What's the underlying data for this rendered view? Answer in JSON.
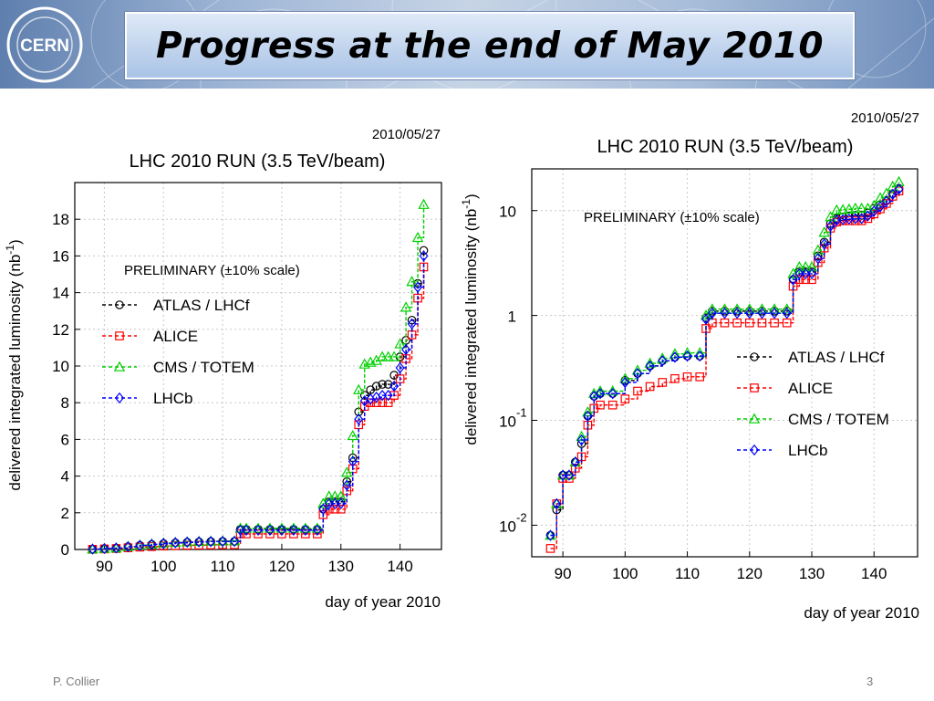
{
  "slide": {
    "title": "Progress at the end of May 2010",
    "footer_author": "P. Collier",
    "page_number": "3",
    "logo_text": "CERN"
  },
  "chart_data": [
    {
      "type": "line",
      "date": "2010/05/27",
      "title": "LHC 2010 RUN (3.5 TeV/beam)",
      "xlabel": "day of year 2010",
      "ylabel": "delivered integrated luminosity (nb",
      "ylabel_sup": "-1",
      "ylabel_end": ")",
      "annotation": "PRELIMINARY (±10% scale)",
      "xlim": [
        85,
        147
      ],
      "ylim": [
        0,
        20
      ],
      "y_scale": "linear",
      "x_ticks": [
        90,
        100,
        110,
        120,
        130,
        140
      ],
      "y_ticks": [
        0,
        2,
        4,
        6,
        8,
        10,
        12,
        14,
        16,
        18
      ],
      "grid": true,
      "legend_position": "middle-left",
      "series": [
        {
          "name": "ATLAS / LHCf",
          "color": "#000000",
          "marker": "circle",
          "x": [
            88,
            90,
            92,
            94,
            96,
            98,
            100,
            102,
            104,
            106,
            108,
            110,
            112,
            113,
            114,
            116,
            118,
            120,
            122,
            124,
            126,
            127,
            128,
            129,
            130,
            131,
            132,
            133,
            134,
            135,
            136,
            137,
            138,
            139,
            140,
            141,
            142,
            143,
            144
          ],
          "y": [
            0.02,
            0.05,
            0.08,
            0.15,
            0.22,
            0.27,
            0.32,
            0.36,
            0.39,
            0.41,
            0.43,
            0.44,
            0.44,
            1.1,
            1.1,
            1.1,
            1.1,
            1.1,
            1.1,
            1.1,
            1.1,
            2.2,
            2.6,
            2.6,
            2.6,
            3.7,
            5.0,
            7.5,
            8.4,
            8.7,
            8.9,
            9.0,
            9.0,
            9.5,
            10.5,
            11.4,
            12.5,
            14.5,
            16.3
          ]
        },
        {
          "name": "ALICE",
          "color": "#ff0000",
          "marker": "square",
          "x": [
            88,
            90,
            92,
            94,
            96,
            98,
            100,
            102,
            104,
            106,
            108,
            110,
            112,
            113,
            114,
            116,
            118,
            120,
            122,
            124,
            126,
            127,
            128,
            129,
            130,
            131,
            132,
            133,
            134,
            135,
            136,
            137,
            138,
            139,
            140,
            141,
            142,
            143,
            144
          ],
          "y": [
            0.01,
            0.03,
            0.05,
            0.09,
            0.13,
            0.16,
            0.19,
            0.21,
            0.23,
            0.24,
            0.25,
            0.26,
            0.26,
            0.85,
            0.85,
            0.85,
            0.85,
            0.85,
            0.85,
            0.85,
            0.85,
            1.9,
            2.2,
            2.2,
            2.2,
            3.2,
            4.4,
            6.8,
            7.8,
            8.0,
            8.0,
            8.0,
            8.0,
            8.4,
            9.3,
            10.4,
            11.7,
            13.7,
            15.4
          ]
        },
        {
          "name": "CMS / TOTEM",
          "color": "#00d000",
          "marker": "triangle",
          "x": [
            88,
            90,
            92,
            94,
            96,
            98,
            100,
            102,
            104,
            106,
            108,
            110,
            112,
            113,
            114,
            116,
            118,
            120,
            122,
            124,
            126,
            127,
            128,
            129,
            130,
            131,
            132,
            133,
            134,
            135,
            136,
            137,
            138,
            139,
            140,
            141,
            142,
            143,
            144
          ],
          "y": [
            0.02,
            0.05,
            0.08,
            0.16,
            0.24,
            0.29,
            0.35,
            0.38,
            0.41,
            0.43,
            0.45,
            0.46,
            0.46,
            1.15,
            1.15,
            1.15,
            1.15,
            1.15,
            1.15,
            1.15,
            1.15,
            2.5,
            2.9,
            2.9,
            2.9,
            4.2,
            6.2,
            8.7,
            10.1,
            10.2,
            10.3,
            10.5,
            10.5,
            10.5,
            11.2,
            13.2,
            14.6,
            17.0,
            18.8
          ]
        },
        {
          "name": "LHCb",
          "color": "#0000ff",
          "marker": "diamond",
          "x": [
            88,
            90,
            92,
            94,
            96,
            98,
            100,
            102,
            104,
            106,
            108,
            110,
            112,
            113,
            114,
            116,
            118,
            120,
            122,
            124,
            126,
            127,
            128,
            129,
            130,
            131,
            132,
            133,
            134,
            135,
            136,
            137,
            138,
            139,
            140,
            141,
            142,
            143,
            144
          ],
          "y": [
            0.02,
            0.05,
            0.08,
            0.15,
            0.22,
            0.28,
            0.33,
            0.37,
            0.4,
            0.42,
            0.43,
            0.44,
            0.44,
            1.05,
            1.05,
            1.05,
            1.05,
            1.05,
            1.05,
            1.05,
            1.05,
            2.2,
            2.5,
            2.5,
            2.5,
            3.5,
            4.8,
            7.1,
            8.1,
            8.2,
            8.3,
            8.4,
            8.4,
            8.9,
            9.9,
            10.9,
            12.3,
            14.3,
            16.0
          ]
        }
      ]
    },
    {
      "type": "line",
      "date": "2010/05/27",
      "title": "LHC 2010 RUN (3.5 TeV/beam)",
      "xlabel": "day of year 2010",
      "ylabel": "delivered integrated luminosity (nb",
      "ylabel_sup": "-1",
      "ylabel_end": ")",
      "annotation": "PRELIMINARY (±10% scale)",
      "xlim": [
        85,
        147
      ],
      "ylim": [
        0.005,
        25
      ],
      "y_scale": "log",
      "x_ticks": [
        90,
        100,
        110,
        120,
        130,
        140
      ],
      "y_ticks": [
        {
          "value": 10,
          "label": "10",
          "sup": ""
        },
        {
          "value": 1,
          "label": "1",
          "sup": ""
        },
        {
          "value": 0.1,
          "label": "10",
          "sup": "-1"
        },
        {
          "value": 0.01,
          "label": "10",
          "sup": "-2"
        }
      ],
      "grid": true,
      "legend_position": "middle-right",
      "series": [
        {
          "name": "ATLAS / LHCf",
          "color": "#000000",
          "marker": "circle",
          "x": [
            88,
            89,
            90,
            91,
            92,
            93,
            94,
            95,
            96,
            98,
            100,
            102,
            104,
            106,
            108,
            110,
            112,
            113,
            114,
            116,
            118,
            120,
            122,
            124,
            126,
            127,
            128,
            129,
            130,
            131,
            132,
            133,
            134,
            135,
            136,
            137,
            138,
            139,
            140,
            141,
            142,
            143,
            144
          ],
          "y": [
            0.008,
            0.014,
            0.03,
            0.03,
            0.04,
            0.06,
            0.11,
            0.17,
            0.18,
            0.18,
            0.24,
            0.28,
            0.33,
            0.37,
            0.4,
            0.41,
            0.41,
            0.95,
            1.1,
            1.1,
            1.1,
            1.1,
            1.1,
            1.1,
            1.1,
            2.2,
            2.6,
            2.6,
            2.6,
            3.7,
            5.0,
            7.5,
            8.4,
            8.7,
            8.9,
            9.0,
            9.0,
            9.5,
            10.5,
            11.4,
            12.5,
            14.5,
            16.3
          ]
        },
        {
          "name": "ALICE",
          "color": "#ff0000",
          "marker": "square",
          "x": [
            88,
            89,
            90,
            91,
            92,
            93,
            94,
            95,
            96,
            98,
            100,
            102,
            104,
            106,
            108,
            110,
            112,
            113,
            114,
            116,
            118,
            120,
            122,
            124,
            126,
            127,
            128,
            129,
            130,
            131,
            132,
            133,
            134,
            135,
            136,
            137,
            138,
            139,
            140,
            141,
            142,
            143,
            144
          ],
          "y": [
            0.006,
            0.016,
            0.028,
            0.028,
            0.035,
            0.045,
            0.09,
            0.13,
            0.14,
            0.14,
            0.16,
            0.19,
            0.21,
            0.23,
            0.25,
            0.26,
            0.26,
            0.75,
            0.85,
            0.85,
            0.85,
            0.85,
            0.85,
            0.85,
            0.85,
            1.9,
            2.2,
            2.2,
            2.2,
            3.2,
            4.4,
            6.8,
            7.8,
            8.0,
            8.0,
            8.0,
            8.0,
            8.4,
            9.3,
            10.4,
            11.7,
            13.7,
            15.4
          ]
        },
        {
          "name": "CMS / TOTEM",
          "color": "#00d000",
          "marker": "triangle",
          "x": [
            88,
            89,
            90,
            91,
            92,
            93,
            94,
            95,
            96,
            98,
            100,
            102,
            104,
            106,
            108,
            110,
            112,
            113,
            114,
            116,
            118,
            120,
            122,
            124,
            126,
            127,
            128,
            129,
            130,
            131,
            132,
            133,
            134,
            135,
            136,
            137,
            138,
            139,
            140,
            141,
            142,
            143,
            144
          ],
          "y": [
            0.008,
            0.016,
            0.03,
            0.03,
            0.04,
            0.07,
            0.12,
            0.18,
            0.19,
            0.19,
            0.25,
            0.3,
            0.35,
            0.39,
            0.43,
            0.44,
            0.44,
            1.0,
            1.15,
            1.15,
            1.15,
            1.15,
            1.15,
            1.15,
            1.15,
            2.5,
            2.9,
            2.9,
            2.9,
            4.2,
            6.2,
            8.7,
            10.1,
            10.2,
            10.3,
            10.5,
            10.5,
            10.5,
            11.2,
            13.2,
            14.6,
            17.0,
            18.8
          ]
        },
        {
          "name": "LHCb",
          "color": "#0000ff",
          "marker": "diamond",
          "x": [
            88,
            89,
            90,
            91,
            92,
            93,
            94,
            95,
            96,
            98,
            100,
            102,
            104,
            106,
            108,
            110,
            112,
            113,
            114,
            116,
            118,
            120,
            122,
            124,
            126,
            127,
            128,
            129,
            130,
            131,
            132,
            133,
            134,
            135,
            136,
            137,
            138,
            139,
            140,
            141,
            142,
            143,
            144
          ],
          "y": [
            0.008,
            0.016,
            0.03,
            0.03,
            0.04,
            0.065,
            0.11,
            0.17,
            0.18,
            0.18,
            0.23,
            0.28,
            0.33,
            0.37,
            0.4,
            0.41,
            0.41,
            0.92,
            1.05,
            1.05,
            1.05,
            1.05,
            1.05,
            1.05,
            1.05,
            2.2,
            2.5,
            2.5,
            2.5,
            3.5,
            4.8,
            7.1,
            8.1,
            8.2,
            8.3,
            8.4,
            8.4,
            8.9,
            9.9,
            10.9,
            12.3,
            14.3,
            16.0
          ]
        }
      ]
    }
  ]
}
